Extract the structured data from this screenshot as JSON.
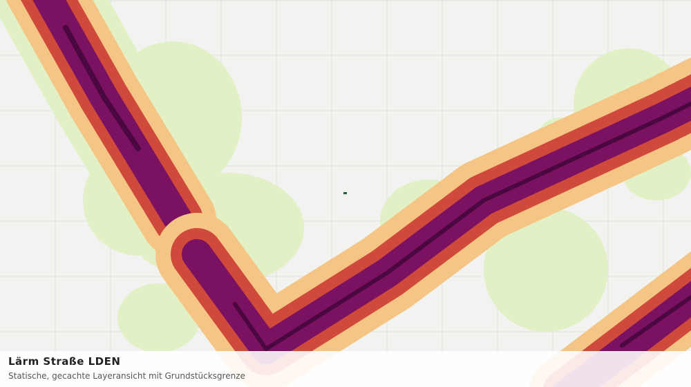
{
  "layer": {
    "title": "Lärm Straße LDEN",
    "subtitle": "Statische, gecachte Layeransicht mit Grundstücksgrenze"
  }
}
